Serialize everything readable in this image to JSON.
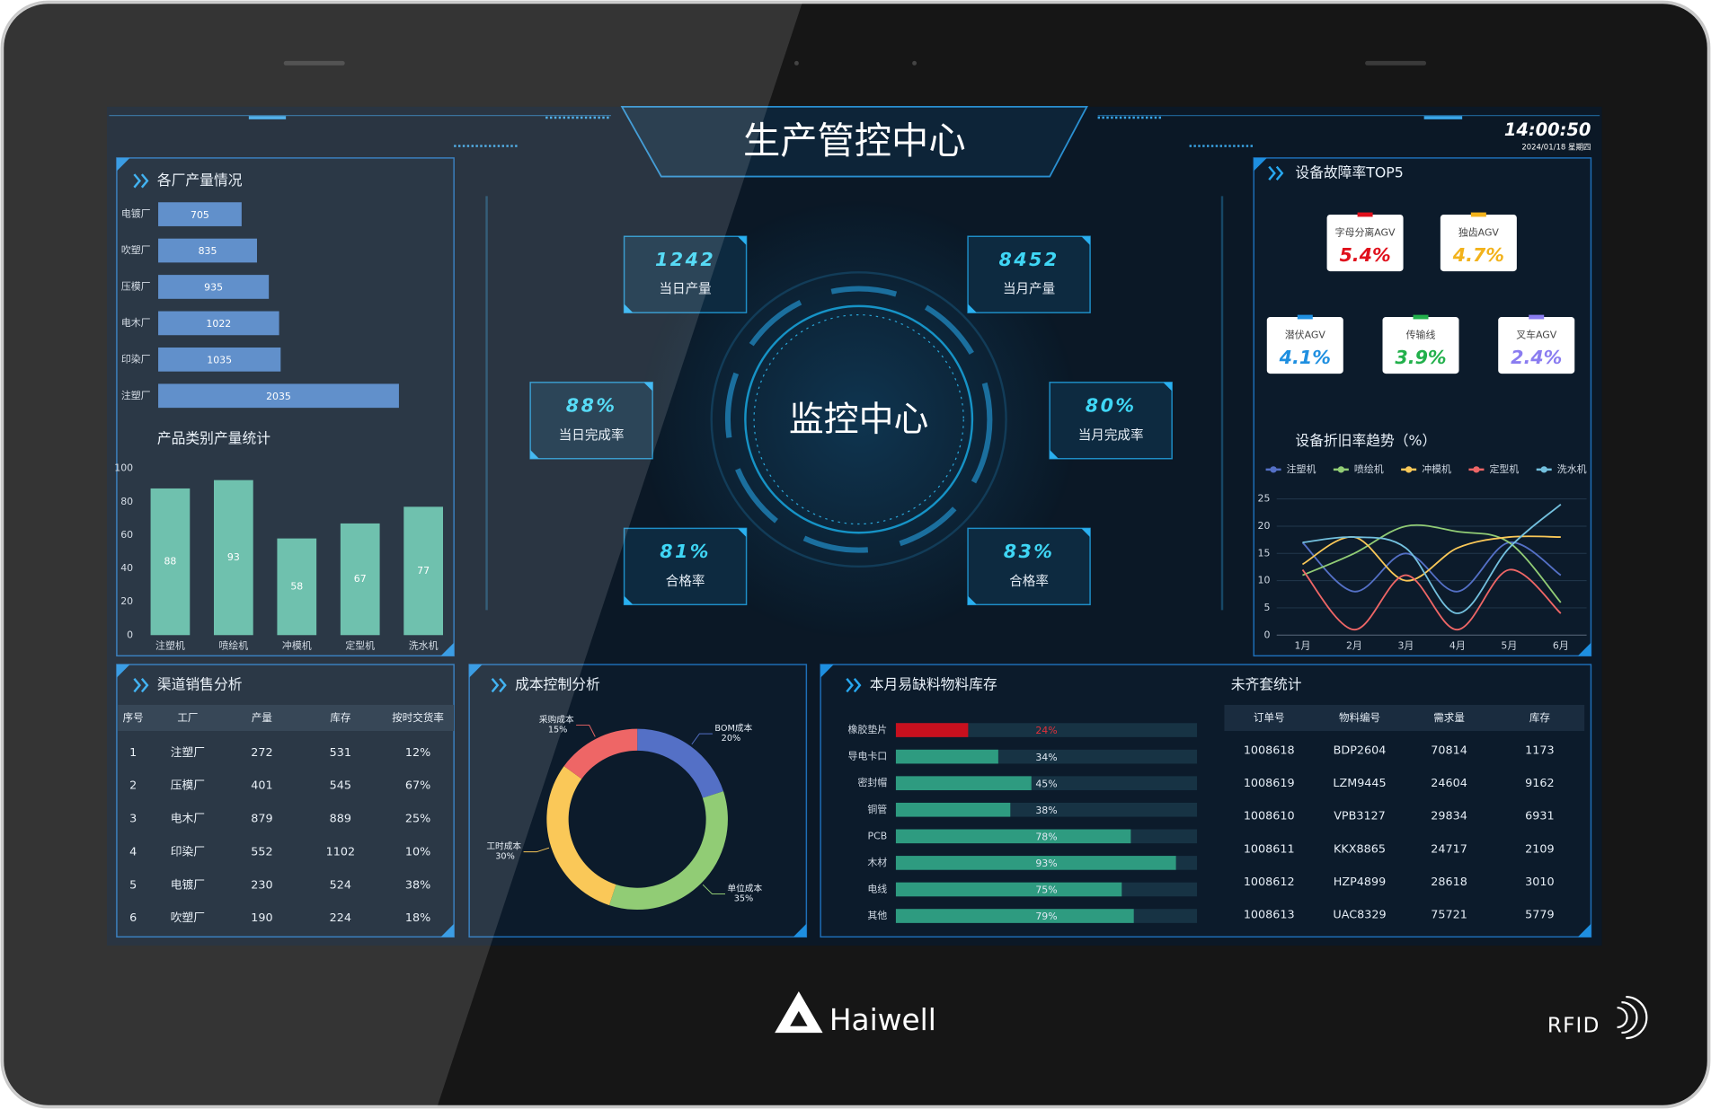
{
  "header": {
    "title": "生产管控中心",
    "time": "14:00:50",
    "date": "2024/01/18 星期四"
  },
  "center": {
    "label": "监控中心"
  },
  "kpis": [
    {
      "value": "1242",
      "label": "当日产量"
    },
    {
      "value": "8452",
      "label": "当月产量"
    },
    {
      "value": "88%",
      "label": "当日完成率"
    },
    {
      "value": "80%",
      "label": "当月完成率"
    },
    {
      "value": "81%",
      "label": "合格率"
    },
    {
      "value": "83%",
      "label": "合格率"
    }
  ],
  "fault_top5": {
    "title": "设备故障率TOP5",
    "items": [
      {
        "name": "字母分离AGV",
        "value": "5.4%",
        "color": "#e0101c"
      },
      {
        "name": "独齿AGV",
        "value": "4.7%",
        "color": "#f2b21b"
      },
      {
        "name": "潜伏AGV",
        "value": "4.1%",
        "color": "#1e8fe0"
      },
      {
        "name": "传输线",
        "value": "3.9%",
        "color": "#22b04b"
      },
      {
        "name": "叉车AGV",
        "value": "2.4%",
        "color": "#8a7cf0"
      }
    ]
  },
  "chart_data": [
    {
      "type": "bar",
      "orientation": "horizontal",
      "title": "各厂产量情况",
      "categories": [
        "电镀厂",
        "吹塑厂",
        "压模厂",
        "电木厂",
        "印染厂",
        "注塑厂"
      ],
      "values": [
        705,
        835,
        935,
        1022,
        1035,
        2035
      ],
      "color": "#4a80c4",
      "xlim": [
        0,
        2500
      ]
    },
    {
      "type": "bar",
      "orientation": "vertical",
      "title": "产品类别产量统计",
      "categories": [
        "注塑机",
        "喷绘机",
        "冲模机",
        "定型机",
        "洗水机"
      ],
      "values": [
        88,
        93,
        58,
        67,
        77
      ],
      "color": "#5ab8a2",
      "ylim": [
        0,
        100
      ],
      "yticks": [
        0,
        20,
        40,
        60,
        80,
        100
      ],
      "grid": false
    },
    {
      "type": "line",
      "title": "设备折旧率趋势（%）",
      "categories": [
        "1月",
        "2月",
        "3月",
        "4月",
        "5月",
        "6月"
      ],
      "series": [
        {
          "name": "注塑机",
          "color": "#5470c6",
          "values": [
            17,
            8,
            15,
            8,
            17,
            11
          ]
        },
        {
          "name": "喷绘机",
          "color": "#91cc75",
          "values": [
            11,
            15,
            20,
            19,
            17,
            6
          ]
        },
        {
          "name": "冲模机",
          "color": "#fac858",
          "values": [
            13,
            18,
            10,
            16,
            18,
            18
          ]
        },
        {
          "name": "定型机",
          "color": "#ee6666",
          "values": [
            12,
            1,
            11,
            1,
            12,
            4
          ]
        },
        {
          "name": "洗水机",
          "color": "#73c0de",
          "values": [
            17,
            18,
            16,
            4,
            16,
            24
          ]
        }
      ],
      "ylim": [
        0,
        25
      ],
      "yticks": [
        0,
        5,
        10,
        15,
        20,
        25
      ],
      "grid": true,
      "legend": "top"
    },
    {
      "type": "pie",
      "title": "成本控制分析",
      "categories": [
        "BOM成本",
        "单位成本",
        "工时成本",
        "采购成本"
      ],
      "values": [
        20,
        35,
        30,
        15
      ],
      "value_labels": [
        "20%",
        "35%",
        "30%",
        "15%"
      ],
      "colors": [
        "#5470c6",
        "#91cc75",
        "#fac858",
        "#ee6666"
      ]
    },
    {
      "type": "bar",
      "orientation": "horizontal",
      "title": "本月易缺料物料库存",
      "categories": [
        "橡胶垫片",
        "导电卡口",
        "密封帽",
        "铜管",
        "PCB",
        "木材",
        "电线",
        "其他"
      ],
      "values": [
        24,
        34,
        45,
        38,
        78,
        93,
        75,
        79
      ],
      "value_labels": [
        "24%",
        "34%",
        "45%",
        "38%",
        "78%",
        "93%",
        "75%",
        "79%"
      ],
      "colors": [
        "#c8101e",
        "#2e9b80",
        "#2e9b80",
        "#2e9b80",
        "#2e9b80",
        "#2e9b80",
        "#2e9b80",
        "#2e9b80"
      ],
      "track_color": "#173344",
      "xlim": [
        0,
        100
      ]
    }
  ],
  "tables": [
    {
      "title": "渠道销售分析",
      "columns": [
        "序号",
        "工厂",
        "产量",
        "库存",
        "按时交货率"
      ],
      "rows": [
        [
          1,
          "注塑厂",
          272,
          531,
          "12%"
        ],
        [
          2,
          "压模厂",
          401,
          545,
          "67%"
        ],
        [
          3,
          "电木厂",
          879,
          889,
          "25%"
        ],
        [
          4,
          "印染厂",
          552,
          1102,
          "10%"
        ],
        [
          5,
          "电镀厂",
          230,
          524,
          "38%"
        ],
        [
          6,
          "吹塑厂",
          190,
          224,
          "18%"
        ]
      ]
    },
    {
      "title": "未齐套统计",
      "columns": [
        "订单号",
        "物料编号",
        "需求量",
        "库存"
      ],
      "rows": [
        [
          1008618,
          "BDP2604",
          70814,
          1173
        ],
        [
          1008619,
          "LZM9445",
          24604,
          9162
        ],
        [
          1008610,
          "VPB3127",
          29834,
          6931
        ],
        [
          1008611,
          "KKX8865",
          24717,
          2109
        ],
        [
          1008612,
          "HZP4899",
          28618,
          3010
        ],
        [
          1008613,
          "UAC8329",
          75721,
          5779
        ]
      ]
    }
  ],
  "device": {
    "brand": "Haiwell",
    "badge": "RFID"
  }
}
